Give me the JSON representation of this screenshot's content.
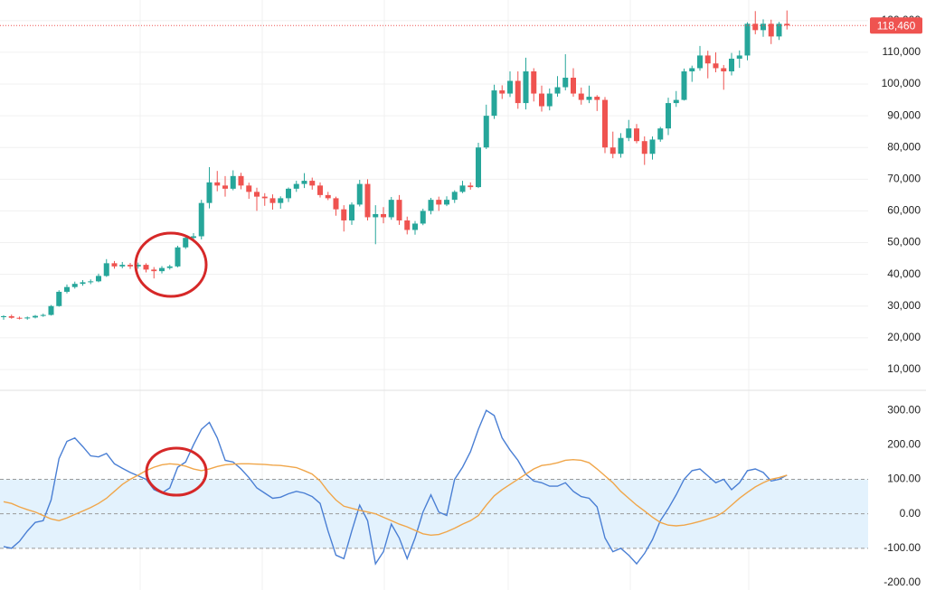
{
  "chart_data": [
    {
      "type": "candlestick",
      "open": [
        26500,
        26800,
        26300,
        26100,
        26400,
        26900,
        27200,
        30000,
        34500,
        36000,
        37000,
        37500,
        37800,
        39500,
        43500,
        42500,
        43000,
        42500,
        43000,
        41500,
        41000,
        42000,
        42500,
        48500,
        51500,
        52000,
        62500,
        69000,
        68000,
        67000,
        71000,
        68000,
        66000,
        64500,
        64000,
        62500,
        64000,
        67000,
        68500,
        69500,
        68000,
        65000,
        64000,
        60500,
        57000,
        62000,
        68500,
        58000,
        59000,
        58000,
        63500,
        57000,
        54000,
        56000,
        60000,
        63500,
        62000,
        63500,
        66000,
        68000,
        67500,
        80000,
        90000,
        98000,
        97000,
        101000,
        94000,
        104000,
        97000,
        93000,
        97000,
        99000,
        102000,
        97000,
        95000,
        96000,
        95000,
        80000,
        78000,
        83000,
        86000,
        82000,
        78000,
        82500,
        86000,
        94000,
        95000,
        104000,
        105000,
        109000,
        106500,
        105000,
        104000,
        108000,
        109000,
        119000,
        117000,
        119000,
        115000,
        119000
      ],
      "high": [
        27100,
        27300,
        26700,
        26700,
        27200,
        27600,
        30300,
        35000,
        36800,
        37700,
        38200,
        38400,
        40200,
        44800,
        44200,
        43900,
        43600,
        43700,
        43500,
        42300,
        42600,
        43000,
        49000,
        52300,
        53000,
        63500,
        73800,
        72600,
        71000,
        72800,
        72000,
        68900,
        67300,
        65600,
        65200,
        64600,
        67400,
        69500,
        71900,
        70500,
        69000,
        66000,
        64500,
        61800,
        62700,
        69800,
        70000,
        61800,
        61200,
        64400,
        65000,
        58200,
        56800,
        60700,
        64100,
        64500,
        64600,
        66500,
        69500,
        69000,
        81500,
        93500,
        99800,
        99600,
        104000,
        104000,
        108300,
        105000,
        99500,
        98600,
        102500,
        109400,
        105000,
        98900,
        99500,
        96500,
        95900,
        85000,
        84500,
        88700,
        87400,
        83500,
        83500,
        86500,
        95700,
        97800,
        104900,
        105800,
        112000,
        110500,
        110000,
        106000,
        109800,
        110600,
        119500,
        123000,
        120400,
        120300,
        119600,
        123200
      ],
      "low": [
        25700,
        26000,
        25800,
        25700,
        26100,
        26600,
        27000,
        29800,
        34000,
        35500,
        36400,
        36900,
        37500,
        39200,
        41800,
        41900,
        41700,
        41800,
        40600,
        38700,
        40300,
        41500,
        42200,
        48000,
        50600,
        51000,
        60800,
        66200,
        64500,
        66500,
        66800,
        63800,
        60000,
        61600,
        60400,
        60700,
        62800,
        66000,
        67200,
        66700,
        64200,
        63400,
        58500,
        53500,
        55600,
        61400,
        57000,
        49500,
        56100,
        57200,
        55600,
        52600,
        52500,
        55500,
        58900,
        60000,
        61500,
        62500,
        65600,
        66700,
        67200,
        79500,
        89000,
        95300,
        95900,
        92200,
        92000,
        94500,
        91300,
        91700,
        96000,
        98000,
        96000,
        93500,
        94000,
        91500,
        78200,
        76600,
        76800,
        82000,
        81300,
        74500,
        76200,
        81800,
        83900,
        92800,
        94800,
        100700,
        104200,
        101800,
        103700,
        98200,
        102700,
        105100,
        107500,
        115700,
        114900,
        112600,
        113900,
        117200
      ],
      "close": [
        26800,
        26300,
        26100,
        26400,
        26900,
        27200,
        30000,
        34500,
        36000,
        37000,
        37500,
        37800,
        39500,
        43500,
        42500,
        43000,
        42500,
        43000,
        41500,
        41000,
        42000,
        42500,
        48500,
        51500,
        52000,
        62500,
        69000,
        68000,
        67000,
        71000,
        68000,
        66000,
        64500,
        64000,
        62500,
        64000,
        67000,
        68500,
        69500,
        68000,
        65000,
        64000,
        60500,
        57000,
        62000,
        68500,
        58000,
        59000,
        58000,
        63500,
        57000,
        54000,
        56000,
        60000,
        63500,
        62000,
        63500,
        66000,
        68000,
        67500,
        80000,
        90000,
        98000,
        97000,
        101000,
        94000,
        104000,
        97000,
        93000,
        97000,
        99000,
        102000,
        97000,
        95000,
        96000,
        95000,
        80000,
        78000,
        83000,
        86000,
        82000,
        78000,
        82500,
        86000,
        94000,
        95000,
        104000,
        105000,
        109000,
        106500,
        105000,
        104000,
        108000,
        109000,
        119000,
        117000,
        119000,
        115000,
        119000,
        118460
      ],
      "up_color": "#26a69a",
      "down_color": "#ef5350",
      "ylim": [
        4000,
        126500
      ],
      "yticks": [
        {
          "value": 10000,
          "label": "10,000"
        },
        {
          "value": 20000,
          "label": "20,000"
        },
        {
          "value": 30000,
          "label": "30,000"
        },
        {
          "value": 40000,
          "label": "40,000"
        },
        {
          "value": 50000,
          "label": "50,000"
        },
        {
          "value": 60000,
          "label": "60,000"
        },
        {
          "value": 70000,
          "label": "70,000"
        },
        {
          "value": 80000,
          "label": "80,000"
        },
        {
          "value": 90000,
          "label": "90,000"
        },
        {
          "value": 100000,
          "label": "100,000"
        },
        {
          "value": 110000,
          "label": "110,000"
        },
        {
          "value": 120000,
          "label": "120,000"
        }
      ],
      "grid": true,
      "last_price": {
        "value": 118460,
        "label": "118,460"
      }
    },
    {
      "type": "line",
      "series": [
        {
          "color": "#4a7fd4",
          "values": [
            -95,
            -100,
            -80,
            -50,
            -25,
            -20,
            40,
            160,
            210,
            220,
            195,
            168,
            165,
            175,
            145,
            132,
            120,
            110,
            100,
            70,
            60,
            75,
            135,
            150,
            200,
            245,
            265,
            220,
            155,
            150,
            130,
            105,
            75,
            60,
            45,
            48,
            58,
            65,
            60,
            50,
            30,
            -50,
            -120,
            -130,
            -50,
            25,
            -20,
            -145,
            -110,
            -30,
            -70,
            -130,
            -70,
            5,
            55,
            5,
            -5,
            100,
            135,
            180,
            245,
            300,
            285,
            220,
            185,
            155,
            115,
            95,
            90,
            80,
            80,
            90,
            65,
            50,
            45,
            20,
            -70,
            -110,
            -100,
            -120,
            -145,
            -115,
            -75,
            -20,
            15,
            55,
            100,
            125,
            130,
            110,
            90,
            100,
            70,
            90,
            125,
            130,
            120,
            95,
            100,
            112
          ]
        },
        {
          "color": "#f0a64a",
          "values": [
            35,
            30,
            20,
            12,
            5,
            -5,
            -15,
            -20,
            -12,
            -2,
            8,
            18,
            30,
            45,
            65,
            85,
            100,
            112,
            125,
            135,
            142,
            145,
            143,
            138,
            130,
            125,
            130,
            137,
            142,
            144,
            145,
            145,
            144,
            143,
            141,
            140,
            137,
            134,
            125,
            115,
            95,
            65,
            40,
            22,
            16,
            10,
            5,
            0,
            -10,
            -20,
            -30,
            -38,
            -48,
            -58,
            -62,
            -60,
            -52,
            -42,
            -30,
            -20,
            -5,
            25,
            52,
            70,
            85,
            100,
            115,
            130,
            140,
            143,
            148,
            155,
            157,
            155,
            148,
            130,
            110,
            90,
            65,
            45,
            25,
            8,
            -10,
            -25,
            -33,
            -35,
            -33,
            -28,
            -22,
            -15,
            -8,
            5,
            25,
            45,
            62,
            78,
            90,
            100,
            105,
            112
          ]
        }
      ],
      "ylim": [
        -221,
        358
      ],
      "yticks": [
        {
          "value": 300,
          "label": "300.00"
        },
        {
          "value": 200,
          "label": "200.00"
        },
        {
          "value": 100,
          "label": "100.00"
        },
        {
          "value": 0,
          "label": "0.00"
        },
        {
          "value": -100,
          "label": "-100.00"
        },
        {
          "value": -200,
          "label": "-200.00"
        }
      ],
      "band": [
        -100,
        100
      ],
      "band_color": "#e3f2fd",
      "levels": [
        100,
        0,
        -100
      ]
    }
  ]
}
